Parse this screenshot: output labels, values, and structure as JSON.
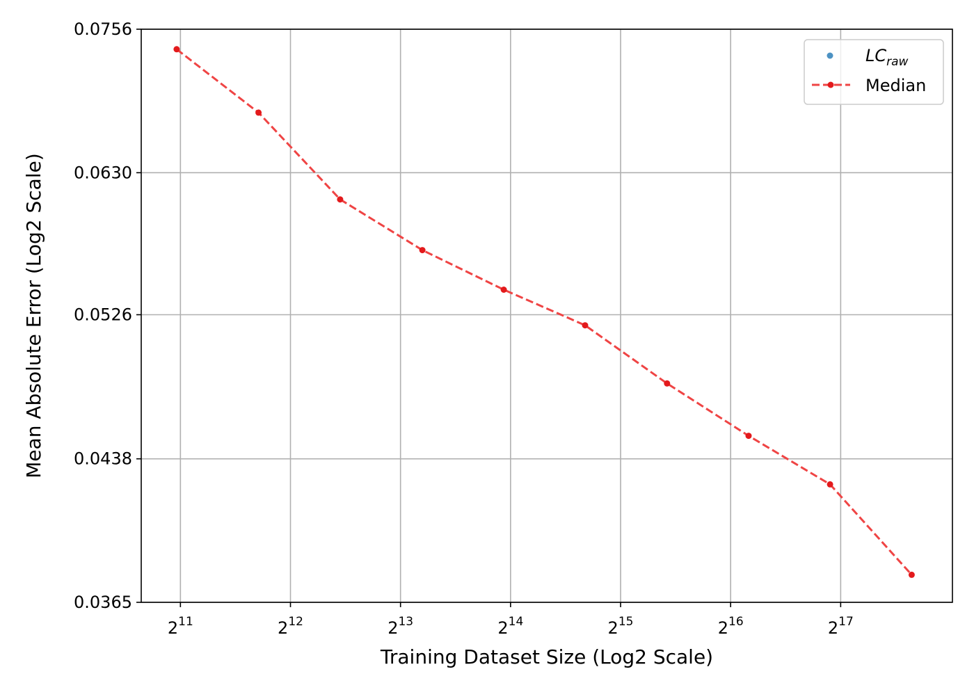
{
  "chart_data": {
    "type": "line",
    "title": "",
    "xlabel": "Training Dataset Size (Log2 Scale)",
    "ylabel": "Mean Absolute Error (Log2 Scale)",
    "x_scale": "log2",
    "y_scale": "log2",
    "x_ticks": [
      2048,
      4096,
      8192,
      16384,
      32768,
      65536,
      131072
    ],
    "x_tick_labels": [
      {
        "base": "2",
        "exp": "11"
      },
      {
        "base": "2",
        "exp": "12"
      },
      {
        "base": "2",
        "exp": "13"
      },
      {
        "base": "2",
        "exp": "14"
      },
      {
        "base": "2",
        "exp": "15"
      },
      {
        "base": "2",
        "exp": "16"
      },
      {
        "base": "2",
        "exp": "17"
      }
    ],
    "y_ticks": [
      0.0365,
      0.0438,
      0.0526,
      0.063,
      0.0756
    ],
    "y_tick_labels": [
      "0.0365",
      "0.0438",
      "0.0526",
      "0.0630",
      "0.0756"
    ],
    "xlim": [
      1600,
      265000
    ],
    "ylim": [
      0.0365,
      0.0756
    ],
    "grid": true,
    "legend": {
      "placement": "top-right",
      "entries": [
        {
          "label_main": "LC",
          "label_sub": "raw",
          "style": "marker",
          "color": "#1f77b4"
        },
        {
          "label_main": "Median",
          "label_sub": "",
          "style": "dashed-line-marker",
          "color": "#e31a1c"
        }
      ]
    },
    "series": [
      {
        "name": "Median",
        "color": "#e31a1c",
        "line_color": "#ef4444",
        "x": [
          2000,
          3350,
          5600,
          9400,
          15700,
          26200,
          43900,
          73400,
          122600,
          205000
        ],
        "y": [
          0.0737,
          0.068,
          0.0609,
          0.0571,
          0.0543,
          0.0519,
          0.0482,
          0.0451,
          0.0424,
          0.0378
        ]
      }
    ]
  }
}
